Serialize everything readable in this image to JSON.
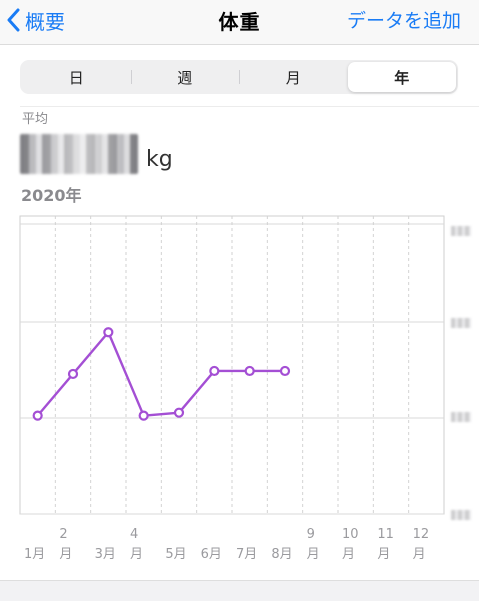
{
  "navbar": {
    "back_label": "概要",
    "title": "体重",
    "add_label": "データを追加"
  },
  "segments": {
    "day": "日",
    "week": "週",
    "month": "月",
    "year": "年",
    "selected": "year"
  },
  "summary": {
    "avg_label": "平均",
    "unit": "kg",
    "period": "2020年"
  },
  "colors": {
    "accent": "#1a7cf5",
    "series": "#a44fd4",
    "grid": "#d9d9d9"
  },
  "chart_data": {
    "type": "line",
    "categories": [
      "1月",
      "2月",
      "3月",
      "4月",
      "5月",
      "6月",
      "7月",
      "8月",
      "9月",
      "10月",
      "11月",
      "12月"
    ],
    "series": [
      {
        "values": [
          3.33,
          3.47,
          3.61,
          3.33,
          3.34,
          3.48,
          3.48,
          3.48,
          null,
          null,
          null,
          null
        ]
      }
    ],
    "y_axis_labels_visible": false,
    "grid": true
  }
}
